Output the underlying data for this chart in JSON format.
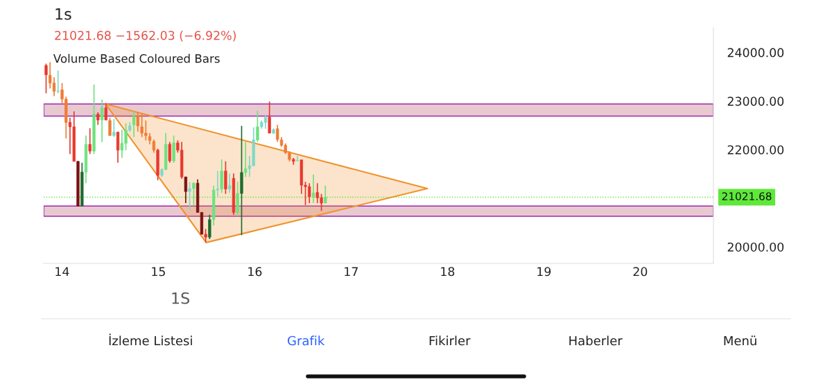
{
  "chart_data": {
    "type": "candlestick",
    "subtitle": "21021.68 −1562.03 (−6.92%)",
    "annotations": [
      "1s",
      "Volume Based Coloured Bars",
      "1S",
      "İzleme Listesi",
      "Grafik",
      "Fikirler",
      "Haberler",
      "Menü"
    ],
    "x": [
      13.835,
      13.876,
      13.918,
      13.959,
      14.001,
      14.042,
      14.083,
      14.125,
      14.166,
      14.208,
      14.249,
      14.29,
      14.332,
      14.373,
      14.415,
      14.456,
      14.497,
      14.539,
      14.58,
      14.622,
      14.663,
      14.704,
      14.746,
      14.787,
      14.829,
      14.87,
      14.911,
      14.953,
      14.994,
      15.036,
      15.077,
      15.118,
      15.16,
      15.201,
      15.243,
      15.284,
      15.325,
      15.367,
      15.408,
      15.45,
      15.491,
      15.532,
      15.574,
      15.615,
      15.657,
      15.698,
      15.739,
      15.781,
      15.822,
      15.864,
      15.905,
      15.946,
      15.988,
      16.029,
      16.071,
      16.112,
      16.153,
      16.195,
      16.236,
      16.278,
      16.319,
      16.36,
      16.402,
      16.443,
      16.485,
      16.526,
      16.567,
      16.609,
      16.65,
      16.692,
      16.733
    ],
    "ohlc": [
      [
        23730,
        23770,
        23160,
        23540
      ],
      [
        23530,
        23800,
        23260,
        23370
      ],
      [
        23370,
        23490,
        23100,
        23200
      ],
      [
        23200,
        23630,
        23160,
        23210
      ],
      [
        23230,
        23370,
        22940,
        23040
      ],
      [
        23040,
        23090,
        22230,
        22560
      ],
      [
        22560,
        22660,
        21910,
        22470
      ],
      [
        22470,
        22790,
        21760,
        21760
      ],
      [
        21760,
        21760,
        20840,
        20840
      ],
      [
        20840,
        21730,
        20840,
        21540
      ],
      [
        21540,
        22290,
        21310,
        22110
      ],
      [
        22110,
        22440,
        21910,
        21970
      ],
      [
        21970,
        23340,
        21910,
        22730
      ],
      [
        22730,
        22770,
        22510,
        22610
      ],
      [
        22610,
        23030,
        22160,
        22860
      ],
      [
        22860,
        22960,
        22610,
        22610
      ],
      [
        22600,
        22660,
        22290,
        22290
      ],
      [
        22290,
        22630,
        22260,
        22360
      ],
      [
        22360,
        22370,
        21730,
        21990
      ],
      [
        21990,
        22410,
        21830,
        22130
      ],
      [
        22130,
        22540,
        21990,
        22400
      ],
      [
        22400,
        22570,
        22370,
        22490
      ],
      [
        22510,
        22790,
        22260,
        22690
      ],
      [
        22690,
        22770,
        22370,
        22490
      ],
      [
        22470,
        22740,
        22260,
        22340
      ],
      [
        22340,
        22600,
        22190,
        22290
      ],
      [
        22270,
        22340,
        22110,
        22190
      ],
      [
        22170,
        22210,
        21940,
        21990
      ],
      [
        21990,
        22020,
        21370,
        21470
      ],
      [
        21470,
        21620,
        21440,
        21590
      ],
      [
        21590,
        22340,
        21590,
        22110
      ],
      [
        22110,
        22160,
        21730,
        21770
      ],
      [
        21770,
        22290,
        21730,
        22140
      ],
      [
        22140,
        22190,
        21940,
        21990
      ],
      [
        21990,
        22160,
        21400,
        21440
      ],
      [
        21440,
        21440,
        20900,
        21140
      ],
      [
        21140,
        21330,
        20760,
        21200
      ],
      [
        21200,
        21330,
        20840,
        21310
      ],
      [
        21310,
        21390,
        20710,
        20710
      ],
      [
        20710,
        20710,
        20260,
        20260
      ],
      [
        20260,
        20370,
        20090,
        20200
      ],
      [
        20200,
        20660,
        20160,
        20560
      ],
      [
        20560,
        21260,
        20440,
        21170
      ],
      [
        21170,
        21560,
        21040,
        21190
      ],
      [
        21190,
        21800,
        21110,
        21560
      ],
      [
        21560,
        21760,
        21090,
        21190
      ],
      [
        21190,
        21510,
        21110,
        21260
      ],
      [
        21410,
        21510,
        20660,
        20710
      ],
      [
        20710,
        21340,
        20630,
        21100
      ],
      [
        21100,
        22490,
        20240,
        21530
      ],
      [
        21530,
        22160,
        21440,
        21610
      ],
      [
        21610,
        21870,
        21440,
        21670
      ],
      [
        21670,
        22460,
        21660,
        22200
      ],
      [
        22200,
        22800,
        22160,
        22470
      ],
      [
        22470,
        22600,
        22430,
        22560
      ],
      [
        22560,
        22700,
        22430,
        22660
      ],
      [
        22670,
        22990,
        22340,
        22340
      ],
      [
        22340,
        22440,
        22320,
        22410
      ],
      [
        22430,
        22510,
        22160,
        22210
      ],
      [
        22200,
        22260,
        22060,
        22090
      ],
      [
        22090,
        22130,
        21910,
        21940
      ],
      [
        21930,
        21970,
        21760,
        21800
      ],
      [
        21800,
        21830,
        21690,
        21760
      ],
      [
        21770,
        21870,
        21760,
        21780
      ],
      [
        21790,
        21790,
        21090,
        21270
      ],
      [
        21270,
        21340,
        20860,
        21240
      ],
      [
        21240,
        21310,
        20900,
        21030
      ],
      [
        21040,
        21490,
        20900,
        21110
      ],
      [
        21120,
        21310,
        20900,
        21010
      ],
      [
        21010,
        21090,
        20740,
        20900
      ],
      [
        20900,
        21260,
        20900,
        21020
      ]
    ],
    "colors": [
      "#e8382f",
      "#f07b35",
      "#f07b35",
      "#7fd8c8",
      "#f07b35",
      "#f07b35",
      "#e8382f",
      "#e8382f",
      "#7a1212",
      "#1f6b2f",
      "#6ee27f",
      "#e8382f",
      "#6ee27f",
      "#e8382f",
      "#6ee27f",
      "#e8382f",
      "#f07b35",
      "#7fd8c8",
      "#e8382f",
      "#6ee27f",
      "#6ee27f",
      "#7fd8c8",
      "#6ee27f",
      "#f07b35",
      "#f07b35",
      "#f07b35",
      "#f07b35",
      "#f07b35",
      "#e8382f",
      "#7fd8c8",
      "#6ee27f",
      "#e8382f",
      "#6ee27f",
      "#e8382f",
      "#e8382f",
      "#7a1212",
      "#7fd8c8",
      "#6ee27f",
      "#7a1212",
      "#7a1212",
      "#e8382f",
      "#1f6b2f",
      "#6ee27f",
      "#7fd8c8",
      "#6ee27f",
      "#e8382f",
      "#7fd8c8",
      "#e8382f",
      "#6ee27f",
      "#1f6b2f",
      "#6ee27f",
      "#7fd8c8",
      "#7fd8c8",
      "#6ee27f",
      "#7fd8c8",
      "#7fd8c8",
      "#e8382f",
      "#7fd8c8",
      "#f07b35",
      "#f07b35",
      "#f07b35",
      "#f07b35",
      "#e8382f",
      "#7fd8c8",
      "#e8382f",
      "#e8382f",
      "#e8382f",
      "#6ee27f",
      "#e8382f",
      "#e8382f",
      "#6ee27f"
    ],
    "series": [
      {
        "type": "area",
        "x": [
          14.453,
          15.496,
          17.791,
          14.453
        ],
        "values": [
          22940,
          20090,
          21200,
          22940
        ],
        "color": "#f0922e"
      }
    ],
    "bands": [
      {
        "axis": "y",
        "from": 22690,
        "to": 22940,
        "color": "#9c27b0"
      },
      {
        "axis": "y",
        "from": 20630,
        "to": 20840,
        "color": "#9c27b0"
      }
    ],
    "ref_lines": [
      {
        "axis": "y",
        "value": 21021.68,
        "label": "21021.68",
        "color": "#5ee83a",
        "line_style": "dotted"
      }
    ],
    "xlim": [
      13.81,
      20.76
    ],
    "ylim": [
      19660,
      24510
    ],
    "xticks": [
      14,
      15,
      16,
      17,
      18,
      19,
      20
    ],
    "yticks": [
      {
        "value": 20000,
        "label": "20000.00"
      },
      {
        "value": 22000,
        "label": "22000.00"
      },
      {
        "value": 23000,
        "label": "23000.00"
      },
      {
        "value": 24000,
        "label": "24000.00"
      }
    ],
    "grid": false
  }
}
